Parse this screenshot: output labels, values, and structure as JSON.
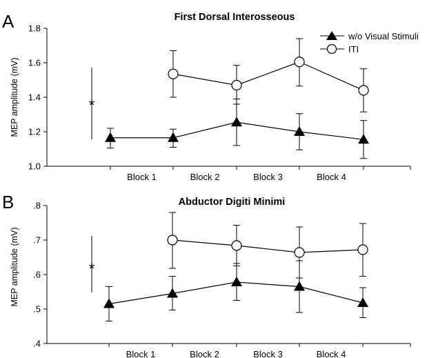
{
  "chart_data": [
    {
      "panel": "A",
      "type": "line",
      "title": "First Dorsal Interosseous",
      "ylabel": "MEP amplitude (mV)",
      "xlabel": "",
      "ylim": [
        1.0,
        1.8
      ],
      "yticks": [
        "1.0",
        "1.2",
        "1.4",
        "1.6",
        "1.8"
      ],
      "ytick_values": [
        1.0,
        1.2,
        1.4,
        1.6,
        1.8
      ],
      "categories": [
        "Block 1",
        "Block 2",
        "Block 3",
        "Block 4"
      ],
      "x": [
        0,
        1,
        2,
        3,
        4
      ],
      "legend_placement": "top-right",
      "grid": false,
      "annotation": "*",
      "series": [
        {
          "name": "w/o Visual Stimuli",
          "marker": "filled-triangle",
          "values": [
            1.165,
            1.165,
            1.255,
            1.2,
            1.155
          ],
          "err_low": [
            1.105,
            1.11,
            1.12,
            1.095,
            1.045
          ],
          "err_high": [
            1.22,
            1.215,
            1.39,
            1.305,
            1.265
          ]
        },
        {
          "name": "ITI",
          "marker": "open-circle",
          "x": [
            1,
            2,
            3,
            4
          ],
          "values": [
            1.535,
            1.47,
            1.605,
            1.44
          ],
          "err_low": [
            1.4,
            1.36,
            1.465,
            1.315
          ],
          "err_high": [
            1.67,
            1.585,
            1.74,
            1.565
          ]
        }
      ]
    },
    {
      "panel": "B",
      "type": "line",
      "title": "Abductor Digiti Minimi",
      "ylabel": "MEP amplitude (mV)",
      "xlabel": "",
      "ylim": [
        0.4,
        0.8
      ],
      "yticks": [
        ".4",
        ".5",
        ".6",
        ".7",
        ".8"
      ],
      "ytick_values": [
        0.4,
        0.5,
        0.6,
        0.7,
        0.8
      ],
      "categories": [
        "Block 1",
        "Block 2",
        "Block 3",
        "Block 4"
      ],
      "x": [
        0,
        1,
        2,
        3,
        4
      ],
      "grid": false,
      "annotation": "*",
      "series": [
        {
          "marker": "filled-triangle",
          "values": [
            0.515,
            0.545,
            0.578,
            0.565,
            0.518
          ],
          "err_low": [
            0.465,
            0.497,
            0.525,
            0.49,
            0.475
          ],
          "err_high": [
            0.565,
            0.595,
            0.632,
            0.64,
            0.562
          ]
        },
        {
          "marker": "open-circle",
          "x": [
            1,
            2,
            3,
            4
          ],
          "values": [
            0.7,
            0.684,
            0.664,
            0.672
          ],
          "err_low": [
            0.618,
            0.625,
            0.59,
            0.595
          ],
          "err_high": [
            0.78,
            0.743,
            0.738,
            0.748
          ]
        }
      ]
    }
  ]
}
